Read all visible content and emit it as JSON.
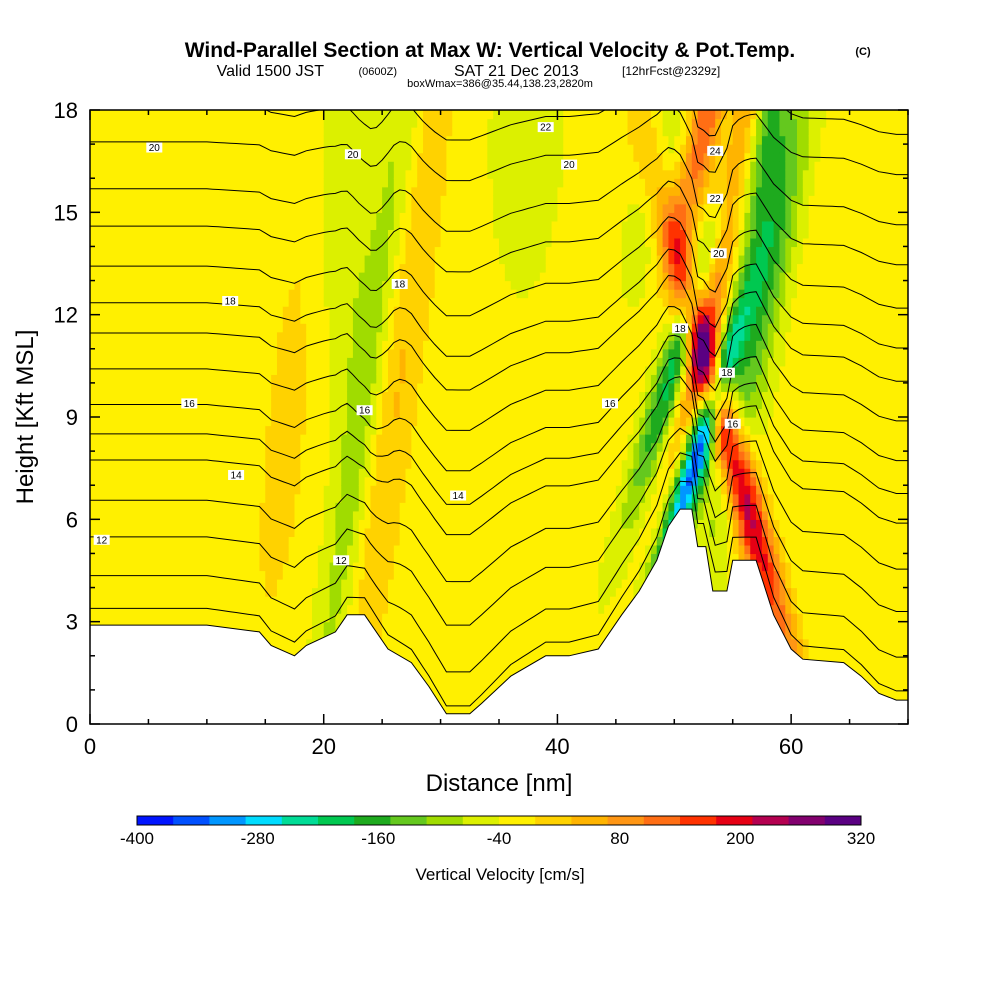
{
  "header": {
    "title": "Wind-Parallel Section at Max W: Vertical Velocity & Pot.Temp.",
    "title_mark": "(C)",
    "sub_a": "Valid 1500 JST",
    "sub_b": "(0600Z)",
    "sub_c": "SAT 21 Dec 2013",
    "sub_d": "[12hrFcst@2329z]",
    "sub_e": "boxWmax=386@35.44,138.23,2820m"
  },
  "chart_data": {
    "type": "heatmap",
    "xlabel": "Distance [nm]",
    "ylabel": "Height [Kft MSL]",
    "xlim": [
      0,
      70
    ],
    "ylim": [
      0,
      18
    ],
    "x_ticks": [
      0,
      20,
      40,
      60
    ],
    "y_ticks": [
      0,
      3,
      6,
      9,
      12,
      15,
      18
    ],
    "colorbar": {
      "label": "Vertical Velocity [cm/s]",
      "range": [
        -400,
        320
      ],
      "step": 40,
      "tick_values": [
        -400,
        -280,
        -160,
        -40,
        80,
        200,
        320
      ],
      "tick_labels": [
        "-400",
        "-280",
        "-160",
        "-40",
        "80",
        "200",
        "320"
      ],
      "colors": [
        "#0014ff",
        "#0050ff",
        "#0096ff",
        "#00dcff",
        "#00dc96",
        "#00c850",
        "#1eaa1e",
        "#64c81e",
        "#a0dc00",
        "#dcf000",
        "#fff000",
        "#ffd200",
        "#ffb400",
        "#ff9614",
        "#ff6e14",
        "#ff3200",
        "#e60014",
        "#b40050",
        "#82006e",
        "#5a0082"
      ]
    },
    "terrain_kft": [
      [
        0,
        2.9
      ],
      [
        5,
        2.9
      ],
      [
        10,
        2.9
      ],
      [
        14.5,
        2.7
      ],
      [
        15.5,
        2.3
      ],
      [
        17.5,
        2.0
      ],
      [
        18.5,
        2.3
      ],
      [
        21,
        2.7
      ],
      [
        22,
        3.2
      ],
      [
        23.5,
        3.2
      ],
      [
        25.5,
        2.2
      ],
      [
        27.5,
        1.8
      ],
      [
        29,
        1.1
      ],
      [
        30.5,
        0.3
      ],
      [
        32.5,
        0.3
      ],
      [
        33.5,
        0.6
      ],
      [
        36,
        1.4
      ],
      [
        39,
        2.0
      ],
      [
        41,
        2.0
      ],
      [
        43.5,
        2.2
      ],
      [
        45.5,
        3.2
      ],
      [
        47,
        3.9
      ],
      [
        48.5,
        4.8
      ],
      [
        49.5,
        5.8
      ],
      [
        50.5,
        6.3
      ],
      [
        51.5,
        6.3
      ],
      [
        52,
        5.2
      ],
      [
        52.7,
        5.2
      ],
      [
        53.3,
        3.9
      ],
      [
        54.5,
        3.9
      ],
      [
        55,
        4.8
      ],
      [
        57,
        4.8
      ],
      [
        58.5,
        3.2
      ],
      [
        60,
        2.2
      ],
      [
        61,
        1.9
      ],
      [
        64.5,
        1.8
      ],
      [
        66,
        1.4
      ],
      [
        67.5,
        0.9
      ],
      [
        69,
        0.7
      ],
      [
        70,
        0.7
      ]
    ],
    "field_features": [
      {
        "x": 26,
        "z": 10,
        "sx": 1.6,
        "sz": 9,
        "w": 90,
        "tilt": 0.4
      },
      {
        "x": 17,
        "z": 9,
        "sx": 2.5,
        "sz": 8,
        "w": 40,
        "tilt": 0.3
      },
      {
        "x": 23.5,
        "z": 9,
        "sx": 1.3,
        "sz": 10,
        "w": -95,
        "tilt": 0.4
      },
      {
        "x": 21.5,
        "z": 15,
        "sx": 1.6,
        "sz": 4,
        "w": -55,
        "tilt": 0
      },
      {
        "x": 52,
        "z": 8,
        "sx": 0.9,
        "sz": 3,
        "w": -380,
        "tilt": 0.9
      },
      {
        "x": 51,
        "z": 11.5,
        "sx": 1.0,
        "sz": 3.5,
        "w": -220,
        "tilt": 0.9
      },
      {
        "x": 49,
        "z": 16,
        "sx": 1.6,
        "sz": 3,
        "w": -40,
        "tilt": 0.9
      },
      {
        "x": 54.5,
        "z": 8.5,
        "sx": 1.1,
        "sz": 5,
        "w": 320,
        "tilt": -0.8
      },
      {
        "x": 54,
        "z": 14,
        "sx": 1.0,
        "sz": 5,
        "w": 210,
        "tilt": 0.6
      },
      {
        "x": 52.5,
        "z": 17.5,
        "sx": 1.0,
        "sz": 2.5,
        "w": 200,
        "tilt": 0.6
      },
      {
        "x": 57.5,
        "z": 12,
        "sx": 1.2,
        "sz": 5,
        "w": -120,
        "tilt": 0.6
      },
      {
        "x": 58,
        "z": 17,
        "sx": 1.2,
        "sz": 2.5,
        "w": -150,
        "tilt": 0.4
      },
      {
        "x": 37.5,
        "z": 17,
        "sx": 1.8,
        "sz": 2.5,
        "w": -45,
        "tilt": 0
      },
      {
        "x": 7.5,
        "z": 13,
        "sx": 2.5,
        "sz": 5,
        "w": 25,
        "tilt": 0
      },
      {
        "x": 43,
        "z": 10,
        "sx": 2.5,
        "sz": 4,
        "w": 25,
        "tilt": 0
      },
      {
        "x": 35,
        "z": 2.5,
        "sx": 3,
        "sz": 1.5,
        "w": 25,
        "tilt": 0
      },
      {
        "x": 65,
        "z": 12,
        "sx": 3,
        "sz": 6,
        "w": 20,
        "tilt": 0
      }
    ],
    "isentropes": {
      "levels": [
        8,
        9,
        10,
        11,
        12,
        13,
        14,
        15,
        16,
        17,
        18,
        19,
        20,
        21,
        22,
        23,
        24,
        25,
        26
      ],
      "base_height_kft": [
        [
          8,
          0.2
        ],
        [
          9,
          1.2
        ],
        [
          10,
          2.6
        ],
        [
          11,
          3.9
        ],
        [
          12,
          5.3
        ],
        [
          13,
          6.2
        ],
        [
          14,
          7.2
        ],
        [
          15,
          8.4
        ],
        [
          16,
          9.6
        ],
        [
          17,
          10.6
        ],
        [
          18,
          11.8
        ],
        [
          19,
          13.1
        ],
        [
          20,
          14.3
        ],
        [
          21,
          15.8
        ],
        [
          22,
          17.0
        ],
        [
          23,
          18.2
        ],
        [
          24,
          19.3
        ],
        [
          25,
          20.3
        ],
        [
          26,
          21.3
        ]
      ]
    },
    "contour_labels": [
      {
        "text": "20",
        "x": 5.5,
        "z": 16.9
      },
      {
        "text": "20",
        "x": 22.5,
        "z": 16.7
      },
      {
        "text": "22",
        "x": 39,
        "z": 17.5
      },
      {
        "text": "20",
        "x": 41,
        "z": 16.4
      },
      {
        "text": "24",
        "x": 53.5,
        "z": 16.8
      },
      {
        "text": "22",
        "x": 53.5,
        "z": 15.4
      },
      {
        "text": "20",
        "x": 53.8,
        "z": 13.8
      },
      {
        "text": "18",
        "x": 12,
        "z": 12.4
      },
      {
        "text": "18",
        "x": 26.5,
        "z": 12.9
      },
      {
        "text": "18",
        "x": 50.5,
        "z": 11.6
      },
      {
        "text": "18",
        "x": 54.5,
        "z": 10.3
      },
      {
        "text": "16",
        "x": 55,
        "z": 8.8
      },
      {
        "text": "16",
        "x": 8.5,
        "z": 9.4
      },
      {
        "text": "16",
        "x": 23.5,
        "z": 9.2
      },
      {
        "text": "16",
        "x": 44.5,
        "z": 9.4
      },
      {
        "text": "14",
        "x": 12.5,
        "z": 7.3
      },
      {
        "text": "14",
        "x": 31.5,
        "z": 6.7
      },
      {
        "text": "12",
        "x": 1,
        "z": 5.4
      },
      {
        "text": "12",
        "x": 21.5,
        "z": 4.8
      }
    ]
  }
}
